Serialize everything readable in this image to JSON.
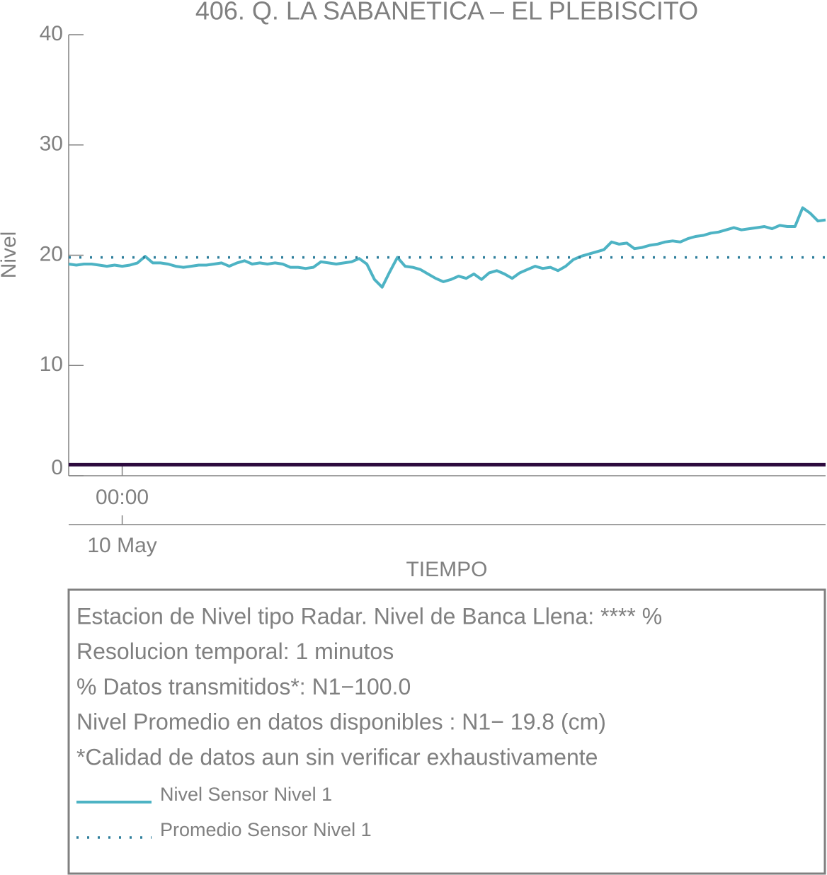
{
  "chart_data": {
    "type": "line",
    "title": "406. Q. LA SABANETICA – EL PLEBISCITO",
    "y_label": "Nivel",
    "x_label": "TIEMPO",
    "xlim": [
      0,
      99
    ],
    "xticks": [
      {
        "value": 7,
        "label": "00:00"
      }
    ],
    "xticks_secondary": [
      {
        "value": 7,
        "label": "10 May"
      }
    ],
    "ylim": [
      0,
      40
    ],
    "yticks": [
      0,
      10,
      20,
      30,
      40
    ],
    "series": [
      {
        "name": "Nivel Sensor Nivel 1",
        "color": "#4db3c4",
        "style": "solid",
        "values": [
          19.2,
          19.1,
          19.2,
          19.2,
          19.1,
          19.0,
          19.1,
          19.0,
          19.1,
          19.3,
          19.9,
          19.3,
          19.3,
          19.2,
          19.0,
          18.9,
          19.0,
          19.1,
          19.1,
          19.2,
          19.3,
          19.0,
          19.3,
          19.5,
          19.2,
          19.3,
          19.2,
          19.3,
          19.2,
          18.9,
          18.9,
          18.8,
          18.9,
          19.4,
          19.3,
          19.2,
          19.3,
          19.4,
          19.7,
          19.2,
          17.8,
          17.1,
          18.5,
          19.8,
          19.0,
          18.9,
          18.7,
          18.3,
          17.9,
          17.6,
          17.8,
          18.1,
          17.9,
          18.3,
          17.8,
          18.4,
          18.6,
          18.3,
          17.9,
          18.4,
          18.7,
          19.0,
          18.8,
          18.9,
          18.6,
          19.0,
          19.6,
          19.9,
          20.1,
          20.3,
          20.5,
          21.2,
          21.0,
          21.1,
          20.6,
          20.7,
          20.9,
          21.0,
          21.2,
          21.3,
          21.2,
          21.5,
          21.7,
          21.8,
          22.0,
          22.1,
          22.3,
          22.5,
          22.3,
          22.4,
          22.5,
          22.6,
          22.4,
          22.7,
          22.6,
          22.6,
          24.3,
          23.8,
          23.1,
          23.2
        ]
      },
      {
        "name": "Promedio Sensor Nivel 1",
        "color": "#2f7f9c",
        "style": "dotted",
        "hline": 19.8
      }
    ],
    "reference_line": {
      "value": 1,
      "color": "#2d0a3e"
    },
    "info_lines": [
      "Estacion de Nivel tipo Radar. Nivel de Banca Llena: **** %",
      "Resolucion temporal: 1 minutos",
      "% Datos transmitidos*: N1−100.0",
      "Nivel Promedio en datos disponibles : N1− 19.8 (cm)",
      "*Calidad de datos aun sin verificar exhaustivamente"
    ]
  }
}
